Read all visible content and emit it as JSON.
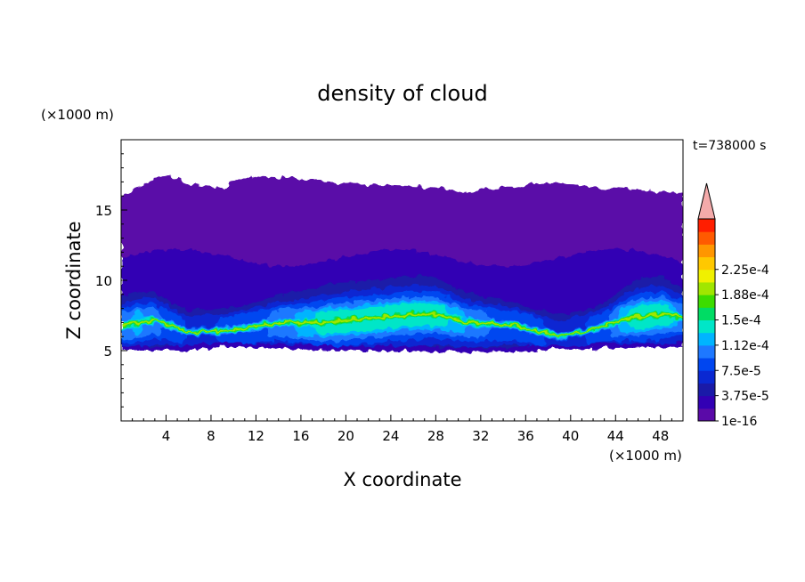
{
  "chart_data": {
    "type": "heatmap",
    "title": "density of cloud",
    "xlabel": "X coordinate",
    "ylabel": "Z coordinate",
    "x_unit": "(×1000 m)",
    "y_unit": "(×1000 m)",
    "time_label": "t=738000 s",
    "xlim": [
      0,
      50
    ],
    "ylim": [
      0,
      20
    ],
    "x_ticks": [
      "4",
      "8",
      "12",
      "16",
      "20",
      "24",
      "28",
      "32",
      "36",
      "40",
      "44",
      "48"
    ],
    "x_tick_values": [
      4,
      8,
      12,
      16,
      20,
      24,
      28,
      32,
      36,
      40,
      44,
      48
    ],
    "y_ticks": [
      "5",
      "10",
      "15"
    ],
    "y_tick_values": [
      5,
      10,
      15
    ],
    "colorbar": {
      "levels": [
        1e-16,
        1.875e-05,
        3.75e-05,
        5.625e-05,
        7.5e-05,
        9.375e-05,
        0.0001125,
        0.00013125,
        0.00015,
        0.00016875,
        0.0001875,
        0.00020625,
        0.000225,
        0.00024375
      ],
      "labels": [
        "1e-16",
        "3.75e-5",
        "7.5e-5",
        "1.12e-4",
        "1.5e-4",
        "1.88e-4",
        "2.25e-4"
      ],
      "colors": [
        "#5a0aa8",
        "#3200b4",
        "#1a1aa8",
        "#0a28d2",
        "#0046f0",
        "#1e78ff",
        "#00b4ff",
        "#00e6c8",
        "#00dc64",
        "#3cdc00",
        "#a0e600",
        "#f0f000",
        "#ffc800",
        "#ff9600",
        "#ff5a00",
        "#ff1e00"
      ],
      "extend_color": "#f4aaaa"
    },
    "cloud_layer": {
      "upper_top_profile": {
        "x": [
          0,
          2,
          3.5,
          5,
          6,
          8,
          9,
          10,
          12,
          15,
          18,
          22,
          26,
          29,
          31,
          33,
          35,
          37,
          39,
          42,
          44,
          46,
          48,
          50
        ],
        "z": [
          16.0,
          16.8,
          17.5,
          17.3,
          16.8,
          16.7,
          16.5,
          17.0,
          17.4,
          17.3,
          17.0,
          16.8,
          16.7,
          16.5,
          16.2,
          16.6,
          16.6,
          16.9,
          17.0,
          16.6,
          16.5,
          16.4,
          16.3,
          16.2
        ]
      },
      "base_profile": {
        "x": [
          0,
          5,
          10,
          16,
          20,
          26,
          30,
          34,
          37,
          39,
          40,
          41.5,
          43,
          46,
          50
        ],
        "z": [
          5.0,
          5.0,
          5.3,
          5.1,
          5.0,
          5.0,
          4.9,
          4.9,
          5.0,
          5.2,
          5.0,
          5.1,
          5.2,
          5.2,
          5.3
        ]
      },
      "bright_band_center": {
        "x": [
          0,
          3,
          6,
          10,
          14,
          18,
          22,
          26,
          28,
          31,
          35,
          39,
          42,
          45,
          48,
          50
        ],
        "z": [
          6.8,
          7.2,
          6.3,
          6.5,
          7.0,
          7.0,
          7.3,
          7.6,
          7.6,
          7.0,
          6.8,
          6.0,
          6.5,
          7.3,
          7.6,
          7.4
        ]
      }
    }
  }
}
